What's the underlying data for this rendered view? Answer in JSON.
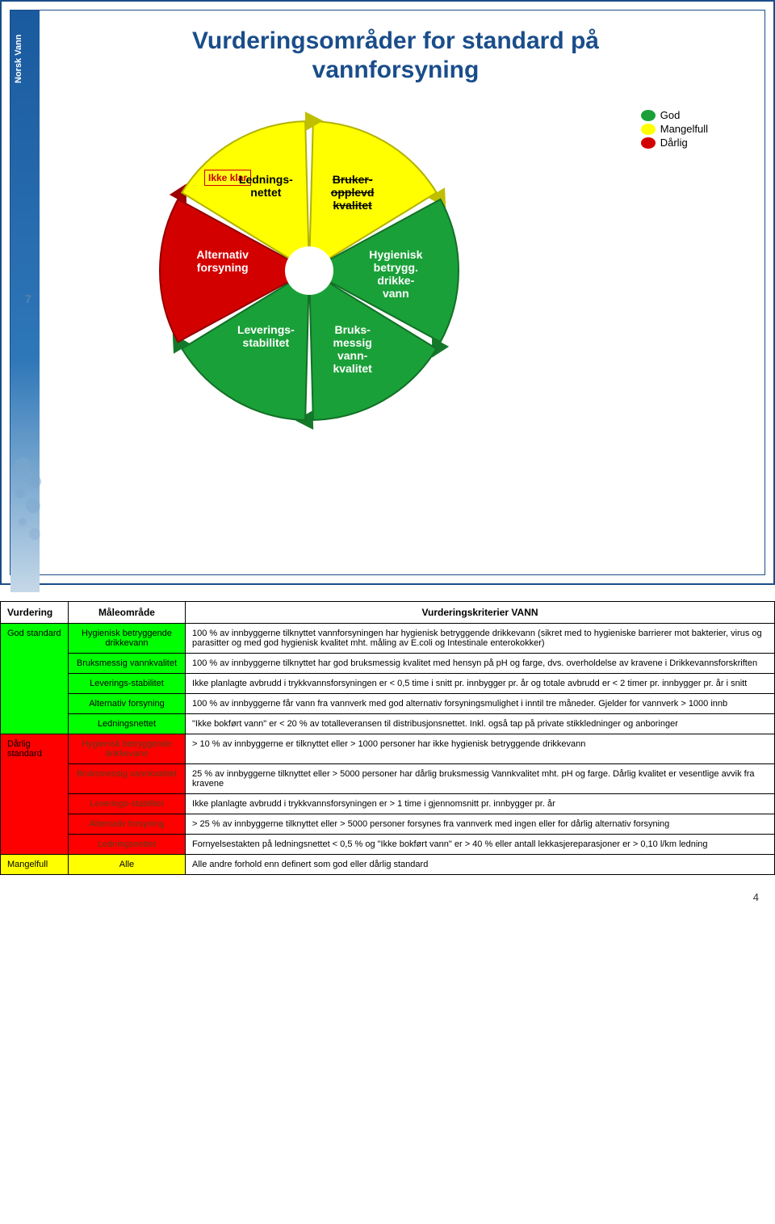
{
  "page_number": "4",
  "slide1": {
    "number": "7",
    "title_line1": "Vurderingsområder for standard på",
    "title_line2": "vannforsyning",
    "overlay_label": "Ikke klar",
    "logo_text": "Norsk Vann",
    "segments": [
      {
        "label_html": "Bruker-\nopplevd\nkvalitet",
        "color": "#ffff00",
        "text_color": "#000000",
        "strike": true
      },
      {
        "label_html": "Hygienisk\nbetrygg.\ndrikke-\nvann",
        "color": "#1aa038",
        "text_color": "#ffffff",
        "strike": false
      },
      {
        "label_html": "Bruks-\nmessig\nvann-\nkvalitet",
        "color": "#1aa038",
        "text_color": "#ffffff",
        "strike": false
      },
      {
        "label_html": "Leverings-\nstabilitet",
        "color": "#1aa038",
        "text_color": "#ffffff",
        "strike": false
      },
      {
        "label_html": "Alternativ\nforsyning",
        "color": "#d30000",
        "text_color": "#ffffff",
        "strike": false
      },
      {
        "label_html": "Lednings-\nnettet",
        "color": "#ffff00",
        "text_color": "#000000",
        "strike": false
      }
    ],
    "legend": [
      {
        "label": "God",
        "color": "#1aa038"
      },
      {
        "label": "Mangelfull",
        "color": "#ffff00"
      },
      {
        "label": "Dårlig",
        "color": "#d30000"
      }
    ]
  },
  "slide2": {
    "headers": [
      "Vurdering",
      "Måleområde",
      "Vurderingskriterier VANN"
    ],
    "groups": [
      {
        "vurdering": "God standard",
        "color_class": "cell-green",
        "area_color_class": "cell-green",
        "rows": [
          {
            "area": "Hygienisk betryggende drikkevann",
            "criteria": "100 % av innbyggerne tilknyttet vannforsyningen har hygienisk betryggende drikkevann  (sikret med to hygieniske barrierer mot bakterier, virus og parasitter og med god hygienisk kvalitet mht. måling av E.coli og Intestinale enterokokker)"
          },
          {
            "area": "Bruksmessig vannkvalitet",
            "criteria": "100 % av innbyggerne tilknyttet har god bruksmessig kvalitet med hensyn på pH og farge, dvs. overholdelse av kravene i Drikkevannsforskriften"
          },
          {
            "area": "Leverings-stabilitet",
            "criteria": "Ikke planlagte avbrudd i trykkvannsforsyningen er < 0,5 time i snitt pr. innbygger  pr. år og totale avbrudd er < 2 timer pr. innbygger pr. år i snitt"
          },
          {
            "area": "Alternativ forsyning",
            "criteria": "100 % av innbyggerne får vann fra vannverk med god alternativ forsyningsmulighet i inntil tre måneder. Gjelder for vannverk > 1000 innb"
          },
          {
            "area": "Ledningsnettet",
            "criteria": "\"Ikke bokført vann\" er < 20 % av totalleveransen til distribusjonsnettet. Inkl. også tap på private stikkledninger og anboringer"
          }
        ]
      },
      {
        "vurdering": "Dårlig standard",
        "color_class": "cell-red",
        "area_color_class": "cell-red",
        "area_dark": true,
        "rows": [
          {
            "area": "Hygienisk betryggende drikkevann",
            "criteria": "> 10 % av innbyggerne er tilknyttet eller > 1000 personer har ikke hygienisk betryggende  drikkevann"
          },
          {
            "area": "Bruksmessig vannkvalitet",
            "criteria": "25 % av innbyggerne tilknyttet eller > 5000 personer har dårlig bruksmessig Vannkvalitet mht. pH og farge. Dårlig kvalitet er vesentlige avvik fra kravene"
          },
          {
            "area": "Leverings-stabilitet",
            "criteria": "Ikke planlagte avbrudd i trykkvannsforsyningen er > 1 time i gjennomsnitt pr. innbygger pr. år"
          },
          {
            "area": "Alternativ forsyning",
            "criteria": "> 25 % av innbyggerne tilknyttet eller > 5000 personer forsynes fra vannverk med ingen eller for dårlig alternativ forsyning"
          },
          {
            "area": "Ledningsnettet",
            "criteria": "Fornyelsestakten på ledningsnettet < 0,5 %  og \"Ikke bokført vann\" er > 40 % eller antall lekkasjereparasjoner er > 0,10 l/km ledning"
          }
        ]
      },
      {
        "vurdering": "Mangelfull",
        "color_class": "cell-yellow",
        "area_color_class": "cell-yellow",
        "rows": [
          {
            "area": "Alle",
            "criteria": "Alle andre forhold enn definert som god eller dårlig standard"
          }
        ]
      }
    ]
  }
}
